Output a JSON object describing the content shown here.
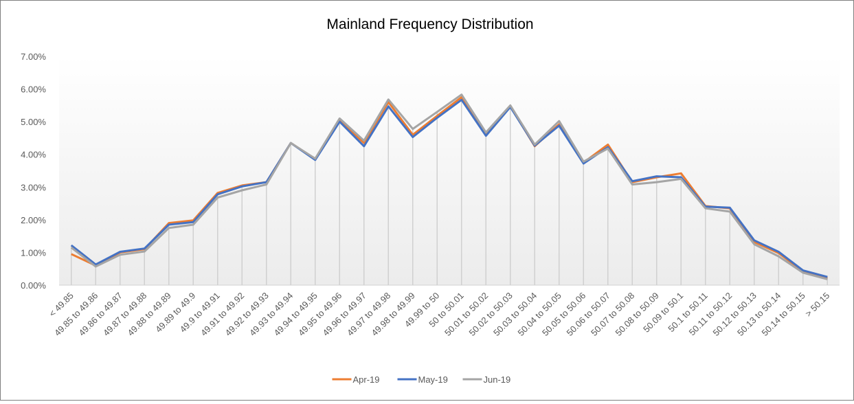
{
  "chart_data": {
    "type": "line",
    "title": "Mainland Frequency Distribution",
    "categories": [
      "< 49.85",
      "49.85 to 49.86",
      "49.86 to 49.87",
      "49.87 to 49.88",
      "49.88 to 49.89",
      "49.89 to 49.9",
      "49.9 to 49.91",
      "49.91 to 49.92",
      "49.92 to 49.93",
      "49.93 to 49.94",
      "49.94 to 49.95",
      "49.95 to 49.96",
      "49.96 to 49.97",
      "49.97 to 49.98",
      "49.98 to 49.99",
      "49.99 to 50",
      "50 to 50.01",
      "50.01 to 50.02",
      "50.02 to 50.03",
      "50.03 to 50.04",
      "50.04 to 50.05",
      "50.05 to 50.06",
      "50.06 to 50.07",
      "50.07 to 50.08",
      "50.08 to 50.09",
      "50.09 to 50.1",
      "50.1 to 50.11",
      "50.11 to 50.12",
      "50.12 to 50.13",
      "50.13 to 50.14",
      "50.14 to 50.15",
      "> 50.15"
    ],
    "series": [
      {
        "name": "Apr-19",
        "color": "#ED7D31",
        "values": [
          0.95,
          0.6,
          1.0,
          1.1,
          1.9,
          1.98,
          2.82,
          3.05,
          3.15,
          4.35,
          3.85,
          5.05,
          4.35,
          5.6,
          4.6,
          5.18,
          5.75,
          4.62,
          5.47,
          4.25,
          4.92,
          3.75,
          4.3,
          3.15,
          3.3,
          3.42,
          2.42,
          2.35,
          1.32,
          0.98,
          0.42,
          0.22
        ]
      },
      {
        "name": "May-19",
        "color": "#4472C4",
        "values": [
          1.22,
          0.63,
          1.02,
          1.12,
          1.85,
          1.93,
          2.78,
          3.02,
          3.15,
          4.35,
          3.83,
          5.0,
          4.25,
          5.47,
          4.53,
          5.12,
          5.67,
          4.57,
          5.45,
          4.27,
          4.88,
          3.72,
          4.22,
          3.18,
          3.33,
          3.3,
          2.4,
          2.37,
          1.37,
          1.02,
          0.45,
          0.25
        ]
      },
      {
        "name": "Jun-19",
        "color": "#A5A5A5",
        "values": [
          1.15,
          0.57,
          0.93,
          1.03,
          1.75,
          1.85,
          2.68,
          2.9,
          3.08,
          4.35,
          3.87,
          5.1,
          4.42,
          5.68,
          4.78,
          5.3,
          5.83,
          4.67,
          5.5,
          4.3,
          5.02,
          3.78,
          4.18,
          3.08,
          3.15,
          3.25,
          2.35,
          2.25,
          1.25,
          0.88,
          0.38,
          0.18
        ]
      }
    ],
    "ylim": [
      0,
      7
    ],
    "yticks": [
      {
        "value": 0,
        "label": "0.00%"
      },
      {
        "value": 1,
        "label": "1.00%"
      },
      {
        "value": 2,
        "label": "2.00%"
      },
      {
        "value": 3,
        "label": "3.00%"
      },
      {
        "value": 4,
        "label": "4.00%"
      },
      {
        "value": 5,
        "label": "5.00%"
      },
      {
        "value": 6,
        "label": "6.00%"
      },
      {
        "value": 7,
        "label": "7.00%"
      }
    ],
    "drop_lines": true,
    "legend": "bottom"
  }
}
